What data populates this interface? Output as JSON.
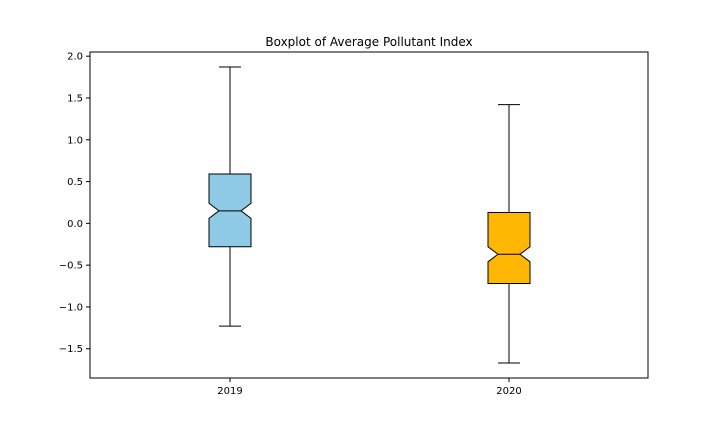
{
  "chart_data": {
    "type": "boxplot",
    "title": "Boxplot of Average Pollutant Index",
    "xlabel": "",
    "ylabel": "",
    "categories": [
      "2019",
      "2020"
    ],
    "ylim": [
      -1.85,
      2.05
    ],
    "yticks": [
      -1.5,
      -1.0,
      -0.5,
      0.0,
      0.5,
      1.0,
      1.5,
      2.0
    ],
    "ytick_labels": [
      "−1.5",
      "−1.0",
      "−0.5",
      "0.0",
      "0.5",
      "1.0",
      "1.5",
      "2.0"
    ],
    "grid": false,
    "notched": true,
    "boxes": [
      {
        "label": "2019",
        "whisker_low": -1.23,
        "q1": -0.28,
        "median": 0.15,
        "q3": 0.59,
        "whisker_high": 1.87,
        "notch_low": 0.06,
        "notch_high": 0.24,
        "color": "#8ecae6"
      },
      {
        "label": "2020",
        "whisker_low": -1.67,
        "q1": -0.72,
        "median": -0.37,
        "q3": 0.13,
        "whisker_high": 1.42,
        "notch_low": -0.46,
        "notch_high": -0.28,
        "color": "#ffb703"
      }
    ]
  }
}
